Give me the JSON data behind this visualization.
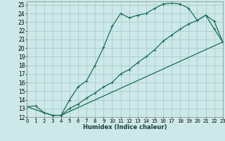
{
  "xlabel": "Humidex (Indice chaleur)",
  "bg_color": "#cce8e8",
  "grid_color": "#aacccc",
  "line_color": "#1a6b5a",
  "xlim": [
    0,
    23
  ],
  "ylim": [
    12,
    25.4
  ],
  "xticks": [
    0,
    1,
    2,
    3,
    4,
    5,
    6,
    7,
    8,
    9,
    10,
    11,
    12,
    13,
    14,
    15,
    16,
    17,
    18,
    19,
    20,
    21,
    22,
    23
  ],
  "yticks": [
    12,
    13,
    14,
    15,
    16,
    17,
    18,
    19,
    20,
    21,
    22,
    23,
    24,
    25
  ],
  "line1_x": [
    0,
    1,
    2,
    3,
    4,
    5,
    6,
    7,
    8,
    9,
    10,
    11,
    12,
    13,
    14,
    15,
    16,
    17,
    18,
    19,
    20,
    21,
    22,
    23
  ],
  "line1_y": [
    13.2,
    13.3,
    12.5,
    12.2,
    12.2,
    14.0,
    15.5,
    16.2,
    18.0,
    20.1,
    22.5,
    24.0,
    23.5,
    23.8,
    24.0,
    24.6,
    25.1,
    25.2,
    25.1,
    24.6,
    23.2,
    23.8,
    22.2,
    20.7
  ],
  "line2_x": [
    0,
    2,
    3,
    4,
    23
  ],
  "line2_y": [
    13.2,
    12.5,
    12.2,
    12.2,
    20.7
  ],
  "line3_x": [
    4,
    5,
    6,
    7,
    8,
    9,
    10,
    11,
    12,
    13,
    14,
    15,
    16,
    17,
    18,
    19,
    20,
    21,
    22,
    23
  ],
  "line3_y": [
    12.2,
    13.0,
    13.5,
    14.2,
    14.8,
    15.5,
    16.0,
    17.0,
    17.5,
    18.3,
    19.0,
    19.8,
    20.8,
    21.5,
    22.2,
    22.8,
    23.2,
    23.8,
    23.1,
    20.7
  ]
}
